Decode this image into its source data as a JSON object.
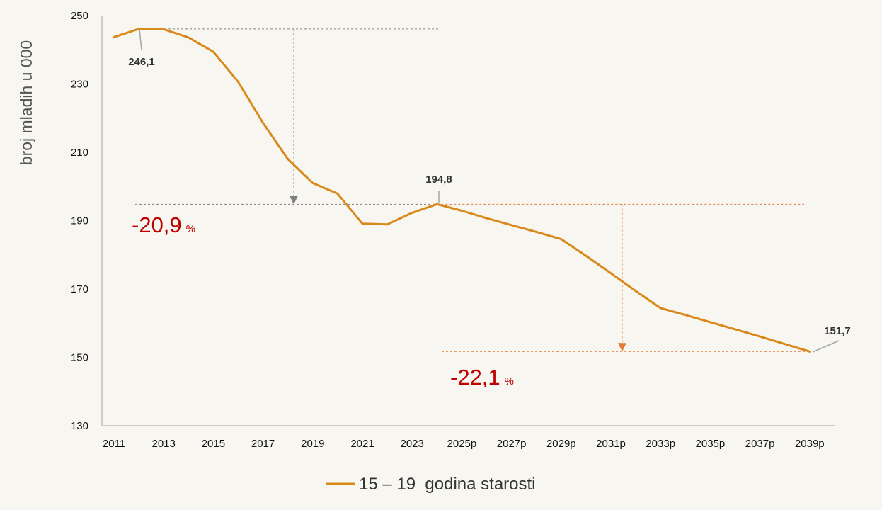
{
  "chart_data": {
    "type": "line",
    "ylabel": "broj mladih u 000",
    "ylim": [
      130,
      250
    ],
    "yticks": [
      130,
      150,
      170,
      190,
      210,
      230,
      250
    ],
    "x": [
      "2011",
      "2012",
      "2013",
      "2014",
      "2015",
      "2016",
      "2017",
      "2018",
      "2019",
      "2020",
      "2021",
      "2022",
      "2023",
      "2024",
      "2025p",
      "2026p",
      "2027p",
      "2028p",
      "2029p",
      "2030p",
      "2031p",
      "2032p",
      "2033p",
      "2034p",
      "2035p",
      "2036p",
      "2037p",
      "2038p",
      "2039p"
    ],
    "xtick_labels": [
      "2011",
      "2013",
      "2015",
      "2017",
      "2019",
      "2021",
      "2023",
      "2025p",
      "2027p",
      "2029p",
      "2031p",
      "2033p",
      "2035p",
      "2037p",
      "2039p"
    ],
    "series": [
      {
        "name": "15 – 19  godina starosti",
        "color": "#d9891a",
        "values": [
          243.7,
          246.1,
          246.0,
          243.6,
          239.4,
          230.6,
          218.6,
          208.0,
          201.0,
          197.9,
          189.1,
          188.9,
          192.3,
          194.8,
          192.9,
          190.7,
          188.7,
          186.7,
          184.6,
          179.7,
          174.6,
          169.4,
          164.4,
          162.4,
          160.3,
          158.2,
          156.1,
          153.9,
          151.7
        ]
      }
    ],
    "data_labels": [
      {
        "x": "2012",
        "value": 246.1,
        "text": "246,1"
      },
      {
        "x": "2024",
        "value": 194.8,
        "text": "194,8"
      },
      {
        "x": "2039p",
        "value": 151.7,
        "text": "151,7"
      }
    ],
    "annotations": [
      {
        "value": "-20,9",
        "unit": "%",
        "from": 246.1,
        "to": 194.8,
        "color": "#808080"
      },
      {
        "value": "-22,1",
        "unit": "%",
        "from": 194.8,
        "to": 151.7,
        "color": "#e07b39"
      }
    ],
    "legend_position": "bottom-center",
    "grid": false
  }
}
